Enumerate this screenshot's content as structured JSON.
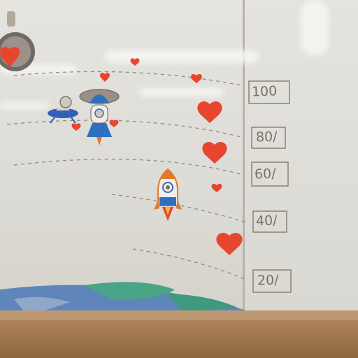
{
  "scale_labels": [
    {
      "text": "100"
    },
    {
      "text": "80/"
    },
    {
      "text": "60/"
    },
    {
      "text": "40/"
    },
    {
      "text": "20/"
    }
  ],
  "colors": {
    "heart": "#e8452e",
    "rocket_body": "#f1ede6",
    "rocket_accent": "#2f6fc0",
    "flame": "#e07a2a",
    "earth_blue": "#5f86b8",
    "earth_green": "#4aa486"
  }
}
